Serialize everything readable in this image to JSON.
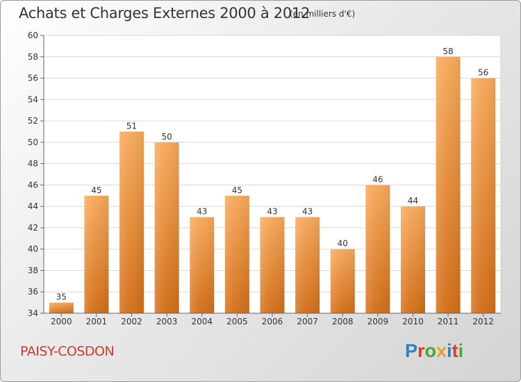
{
  "header": {
    "title": "Achats et Charges Externes 2000 à 2012",
    "subtitle": "(en milliers d'€)"
  },
  "footer": {
    "place": "PAISY-COSDON",
    "logo_letters": [
      "P",
      "r",
      "o",
      "x",
      "i",
      "t",
      "i"
    ],
    "logo_colors": [
      "#2f7fc4",
      "#e0392a",
      "#49a83c",
      "#f0a020",
      "#2f7fc4",
      "#e0392a",
      "#49a83c"
    ]
  },
  "chart_data": {
    "type": "bar",
    "categories": [
      "2000",
      "2001",
      "2002",
      "2003",
      "2004",
      "2005",
      "2006",
      "2007",
      "2008",
      "2009",
      "2010",
      "2011",
      "2012"
    ],
    "values": [
      35,
      45,
      51,
      50,
      43,
      45,
      43,
      43,
      40,
      46,
      44,
      58,
      56
    ],
    "ylim": [
      34,
      60
    ],
    "yticks": [
      34,
      36,
      38,
      40,
      42,
      44,
      46,
      48,
      50,
      52,
      54,
      56,
      58,
      60
    ],
    "grid": true,
    "bar_color_top": "#f7a95a",
    "bar_color_bottom": "#d26d16",
    "grid_color": "#d8d8d8"
  }
}
